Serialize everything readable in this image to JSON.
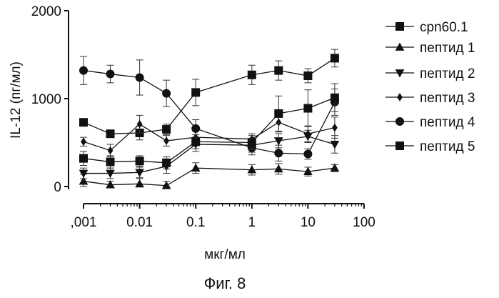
{
  "chart_data": {
    "type": "line",
    "x": [
      0.001,
      0.003,
      0.01,
      0.03,
      0.1,
      1,
      3,
      10,
      30
    ],
    "x_scale": "log",
    "xlim": [
      0.001,
      100
    ],
    "ylim": [
      0,
      2000
    ],
    "xlabel": "мкг/мл",
    "ylabel": "IL-12 (пг/мл)",
    "x_ticks": [
      0.001,
      0.01,
      0.1,
      1,
      10,
      100
    ],
    "x_tick_labels": [
      ",001",
      "0.01",
      "0.1",
      "1",
      "10",
      "100"
    ],
    "y_ticks": [
      0,
      1000,
      2000
    ],
    "y_tick_labels": [
      "0",
      "1000",
      "2000"
    ],
    "legend_position": "right",
    "grid": false,
    "series": [
      {
        "name": "cpn60.1",
        "marker": "square",
        "values": [
          730,
          600,
          610,
          650,
          1070,
          1270,
          1320,
          1260,
          1460
        ],
        "errors": [
          40,
          40,
          80,
          60,
          150,
          110,
          110,
          80,
          100
        ]
      },
      {
        "name": "пептид 1",
        "marker": "triangle-up",
        "values": [
          60,
          20,
          30,
          10,
          210,
          190,
          200,
          170,
          210
        ],
        "errors": [
          80,
          40,
          60,
          50,
          60,
          60,
          60,
          50,
          40
        ]
      },
      {
        "name": "пептид 2",
        "marker": "triangle-down",
        "values": [
          150,
          150,
          160,
          230,
          480,
          470,
          520,
          570,
          480
        ],
        "errors": [
          60,
          60,
          60,
          80,
          80,
          80,
          80,
          70,
          100
        ]
      },
      {
        "name": "пептид 3",
        "marker": "diamond",
        "values": [
          510,
          410,
          710,
          520,
          560,
          540,
          730,
          600,
          670
        ],
        "errors": [
          50,
          70,
          100,
          60,
          80,
          60,
          110,
          90,
          120
        ]
      },
      {
        "name": "пептид 4",
        "marker": "circle",
        "values": [
          1320,
          1280,
          1240,
          1060,
          660,
          440,
          380,
          370,
          960
        ],
        "errors": [
          160,
          100,
          200,
          150,
          100,
          80,
          90,
          60,
          150
        ]
      },
      {
        "name": "пептид 5",
        "marker": "square",
        "values": [
          320,
          280,
          290,
          270,
          510,
          500,
          830,
          890,
          1010
        ],
        "errors": [
          80,
          70,
          60,
          70,
          80,
          80,
          200,
          210,
          160
        ]
      }
    ]
  },
  "caption": "Фиг. 8"
}
